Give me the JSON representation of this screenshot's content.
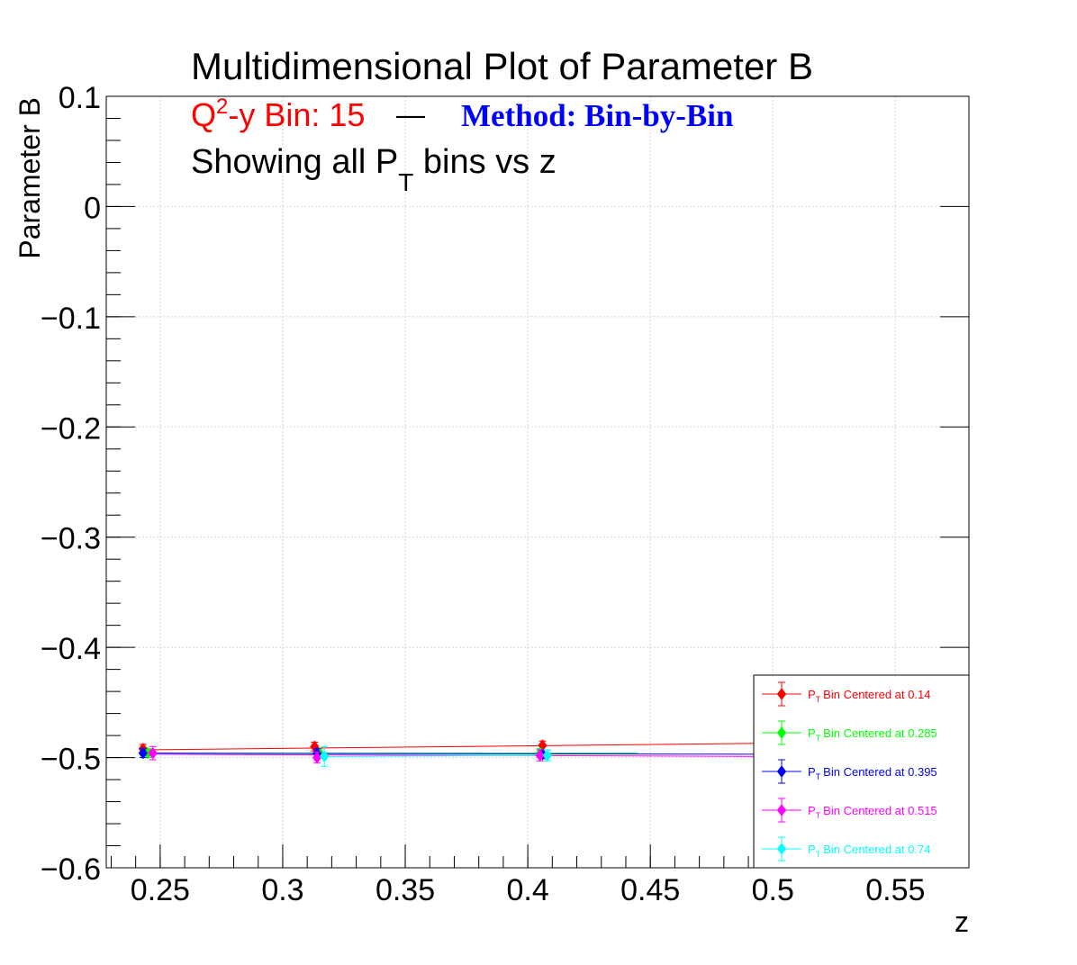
{
  "chart_data": {
    "type": "scatter",
    "title": "Multidimensional Plot of Parameter B",
    "subtitle": {
      "q2y_prefix": "Q",
      "q2y_sup": "2",
      "q2y_suffix": "-y Bin: 15",
      "dash": "—",
      "method": "Method: Bin-by-Bin",
      "showing_prefix": "Showing all P",
      "showing_sub": "T",
      "showing_suffix": " bins vs z"
    },
    "xlabel": "z",
    "ylabel": "Parameter B",
    "xlim": [
      0.228,
      0.58
    ],
    "ylim": [
      -0.6,
      0.1
    ],
    "xticks": [
      0.25,
      0.3,
      0.35,
      0.4,
      0.45,
      0.5,
      0.55
    ],
    "xtick_labels": [
      "0.25",
      "0.3",
      "0.35",
      "0.4",
      "0.45",
      "0.5",
      "0.55"
    ],
    "yticks": [
      0.1,
      0.0,
      -0.1,
      -0.2,
      -0.3,
      -0.4,
      -0.5,
      -0.6
    ],
    "ytick_labels": [
      "0.1",
      "0",
      "−0.1",
      "−0.2",
      "−0.3",
      "−0.4",
      "−0.5",
      "−0.6"
    ],
    "grid": true,
    "legend_position": "bottom-right",
    "series": [
      {
        "name": "Bin Centered at 0.14",
        "legend_prefix": "P",
        "legend_sub": "T",
        "color": "#ff0000",
        "x": [
          0.243,
          0.313,
          0.406,
          0.5
        ],
        "y": [
          -0.492,
          -0.49,
          -0.489,
          -0.487
        ],
        "yerr": [
          0.004,
          0.004,
          0.004,
          0.004
        ],
        "fit": {
          "x0": 0.243,
          "x1": 0.5,
          "y0": -0.493,
          "y1": -0.487
        }
      },
      {
        "name": "Bin Centered at 0.285",
        "legend_prefix": "P",
        "legend_sub": "T",
        "color": "#00ff00",
        "x": [
          0.245,
          0.315,
          0.405,
          0.5
        ],
        "y": [
          -0.496,
          -0.496,
          -0.496,
          -0.496
        ],
        "yerr": [
          0.004,
          0.004,
          0.004,
          0.004
        ],
        "fit": {
          "x0": 0.245,
          "x1": 0.445,
          "y0": -0.496,
          "y1": -0.496
        }
      },
      {
        "name": "Bin Centered at 0.395",
        "legend_prefix": "P",
        "legend_sub": "T",
        "color": "#0000ff",
        "x": [
          0.243,
          0.314,
          0.406,
          0.5
        ],
        "y": [
          -0.496,
          -0.496,
          -0.497,
          -0.497
        ],
        "yerr": [
          0.004,
          0.004,
          0.004,
          0.004
        ],
        "fit": {
          "x0": 0.243,
          "x1": 0.5,
          "y0": -0.496,
          "y1": -0.497
        }
      },
      {
        "name": "Bin Centered at 0.515",
        "legend_prefix": "P",
        "legend_sub": "T",
        "color": "#ff00ff",
        "x": [
          0.247,
          0.314,
          0.405,
          0.5
        ],
        "y": [
          -0.496,
          -0.5,
          -0.498,
          -0.499
        ],
        "yerr": [
          0.006,
          0.005,
          0.005,
          0.005
        ],
        "fit": {
          "x0": 0.247,
          "x1": 0.5,
          "y0": -0.497,
          "y1": -0.499
        }
      },
      {
        "name": "Bin Centered at 0.74",
        "legend_prefix": "P",
        "legend_sub": "T",
        "color": "#00ffff",
        "x": [
          0.317,
          0.408
        ],
        "y": [
          -0.499,
          -0.498
        ],
        "yerr": [
          0.009,
          0.005
        ],
        "fit": {
          "x0": 0.317,
          "x1": 0.408,
          "y0": -0.499,
          "y1": -0.498
        }
      }
    ]
  }
}
